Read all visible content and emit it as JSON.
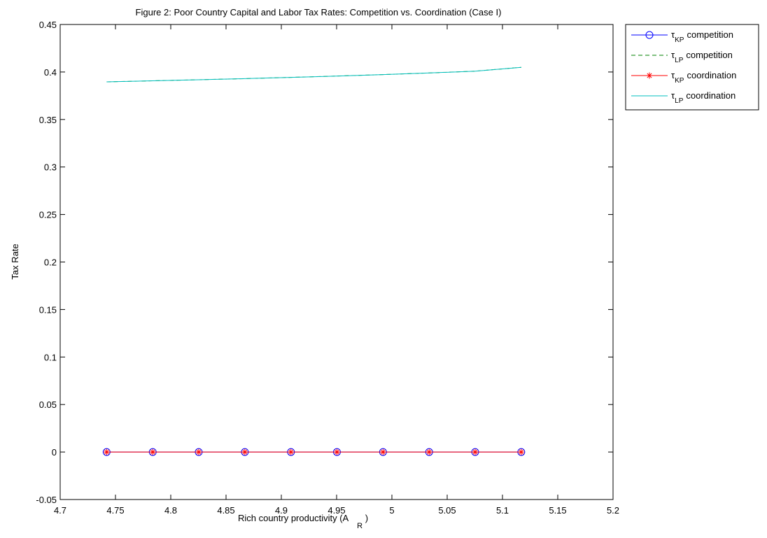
{
  "chart_data": {
    "type": "line",
    "title": "Figure 2: Poor Country Capital and Labor Tax Rates: Competition vs. Coordination (Case I)",
    "xlabel": "Rich country productivity (A",
    "xlabel_sub": "R",
    "xlabel_close": ")",
    "ylabel": "Tax Rate",
    "xlim": [
      4.7,
      5.2
    ],
    "ylim": [
      -0.05,
      0.45
    ],
    "xticks": [
      4.7,
      4.75,
      4.8,
      4.85,
      4.9,
      4.95,
      5,
      5.05,
      5.1,
      5.15,
      5.2
    ],
    "xtick_labels": [
      "4.7",
      "4.75",
      "4.8",
      "4.85",
      "4.9",
      "4.95",
      "5",
      "5.05",
      "5.1",
      "5.15",
      "5.2"
    ],
    "yticks": [
      -0.05,
      0,
      0.05,
      0.1,
      0.15,
      0.2,
      0.25,
      0.3,
      0.35,
      0.4,
      0.45
    ],
    "ytick_labels": [
      "-0.05",
      "0",
      "0.05",
      "0.1",
      "0.15",
      "0.2",
      "0.25",
      "0.3",
      "0.35",
      "0.4",
      "0.45"
    ],
    "grid": false,
    "legend_position": "outside-top-right",
    "x": [
      4.742,
      4.7837,
      4.8253,
      4.867,
      4.9087,
      4.9503,
      4.992,
      5.0337,
      5.0753,
      5.117
    ],
    "series": [
      {
        "legend_symbol": "τ",
        "legend_sub": "KP",
        "legend_text": "competition",
        "color": "#0000ff",
        "line_style": "solid",
        "marker": "circle",
        "y": [
          0,
          0,
          0,
          0,
          0,
          0,
          0,
          0,
          0,
          0
        ]
      },
      {
        "legend_symbol": "τ",
        "legend_sub": "LP",
        "legend_text": "competition",
        "color": "#008000",
        "line_style": "dashed",
        "marker": "none",
        "y": [
          0.3896,
          0.3907,
          0.3918,
          0.393,
          0.3943,
          0.3957,
          0.3973,
          0.399,
          0.4009,
          0.4049
        ]
      },
      {
        "legend_symbol": "τ",
        "legend_sub": "KP",
        "legend_text": "coordination",
        "color": "#ff0000",
        "line_style": "solid",
        "marker": "star",
        "y": [
          0,
          0,
          0,
          0,
          0,
          0,
          0,
          0,
          0,
          0
        ]
      },
      {
        "legend_symbol": "τ",
        "legend_sub": "LP",
        "legend_text": "coordination",
        "color": "#00bfbf",
        "line_style": "solid",
        "marker": "none",
        "y": [
          0.3896,
          0.3907,
          0.3918,
          0.393,
          0.3943,
          0.3957,
          0.3973,
          0.399,
          0.4009,
          0.4049
        ]
      }
    ]
  }
}
